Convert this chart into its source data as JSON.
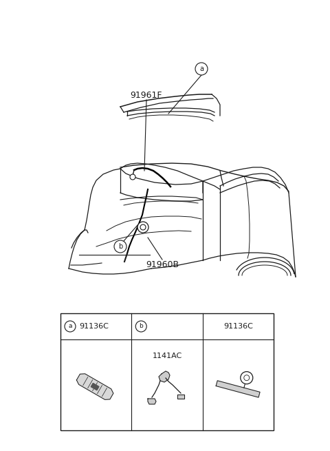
{
  "bg_color": "#ffffff",
  "line_color": "#1a1a1a",
  "part_91961F": "91961F",
  "part_91960B": "91960B",
  "part_91136C_a": "91136C",
  "part_91136C_b": "91136C",
  "part_1141AC": "1141AC",
  "car_scale": 1.0,
  "fig_w": 4.8,
  "fig_h": 6.55,
  "dpi": 100
}
